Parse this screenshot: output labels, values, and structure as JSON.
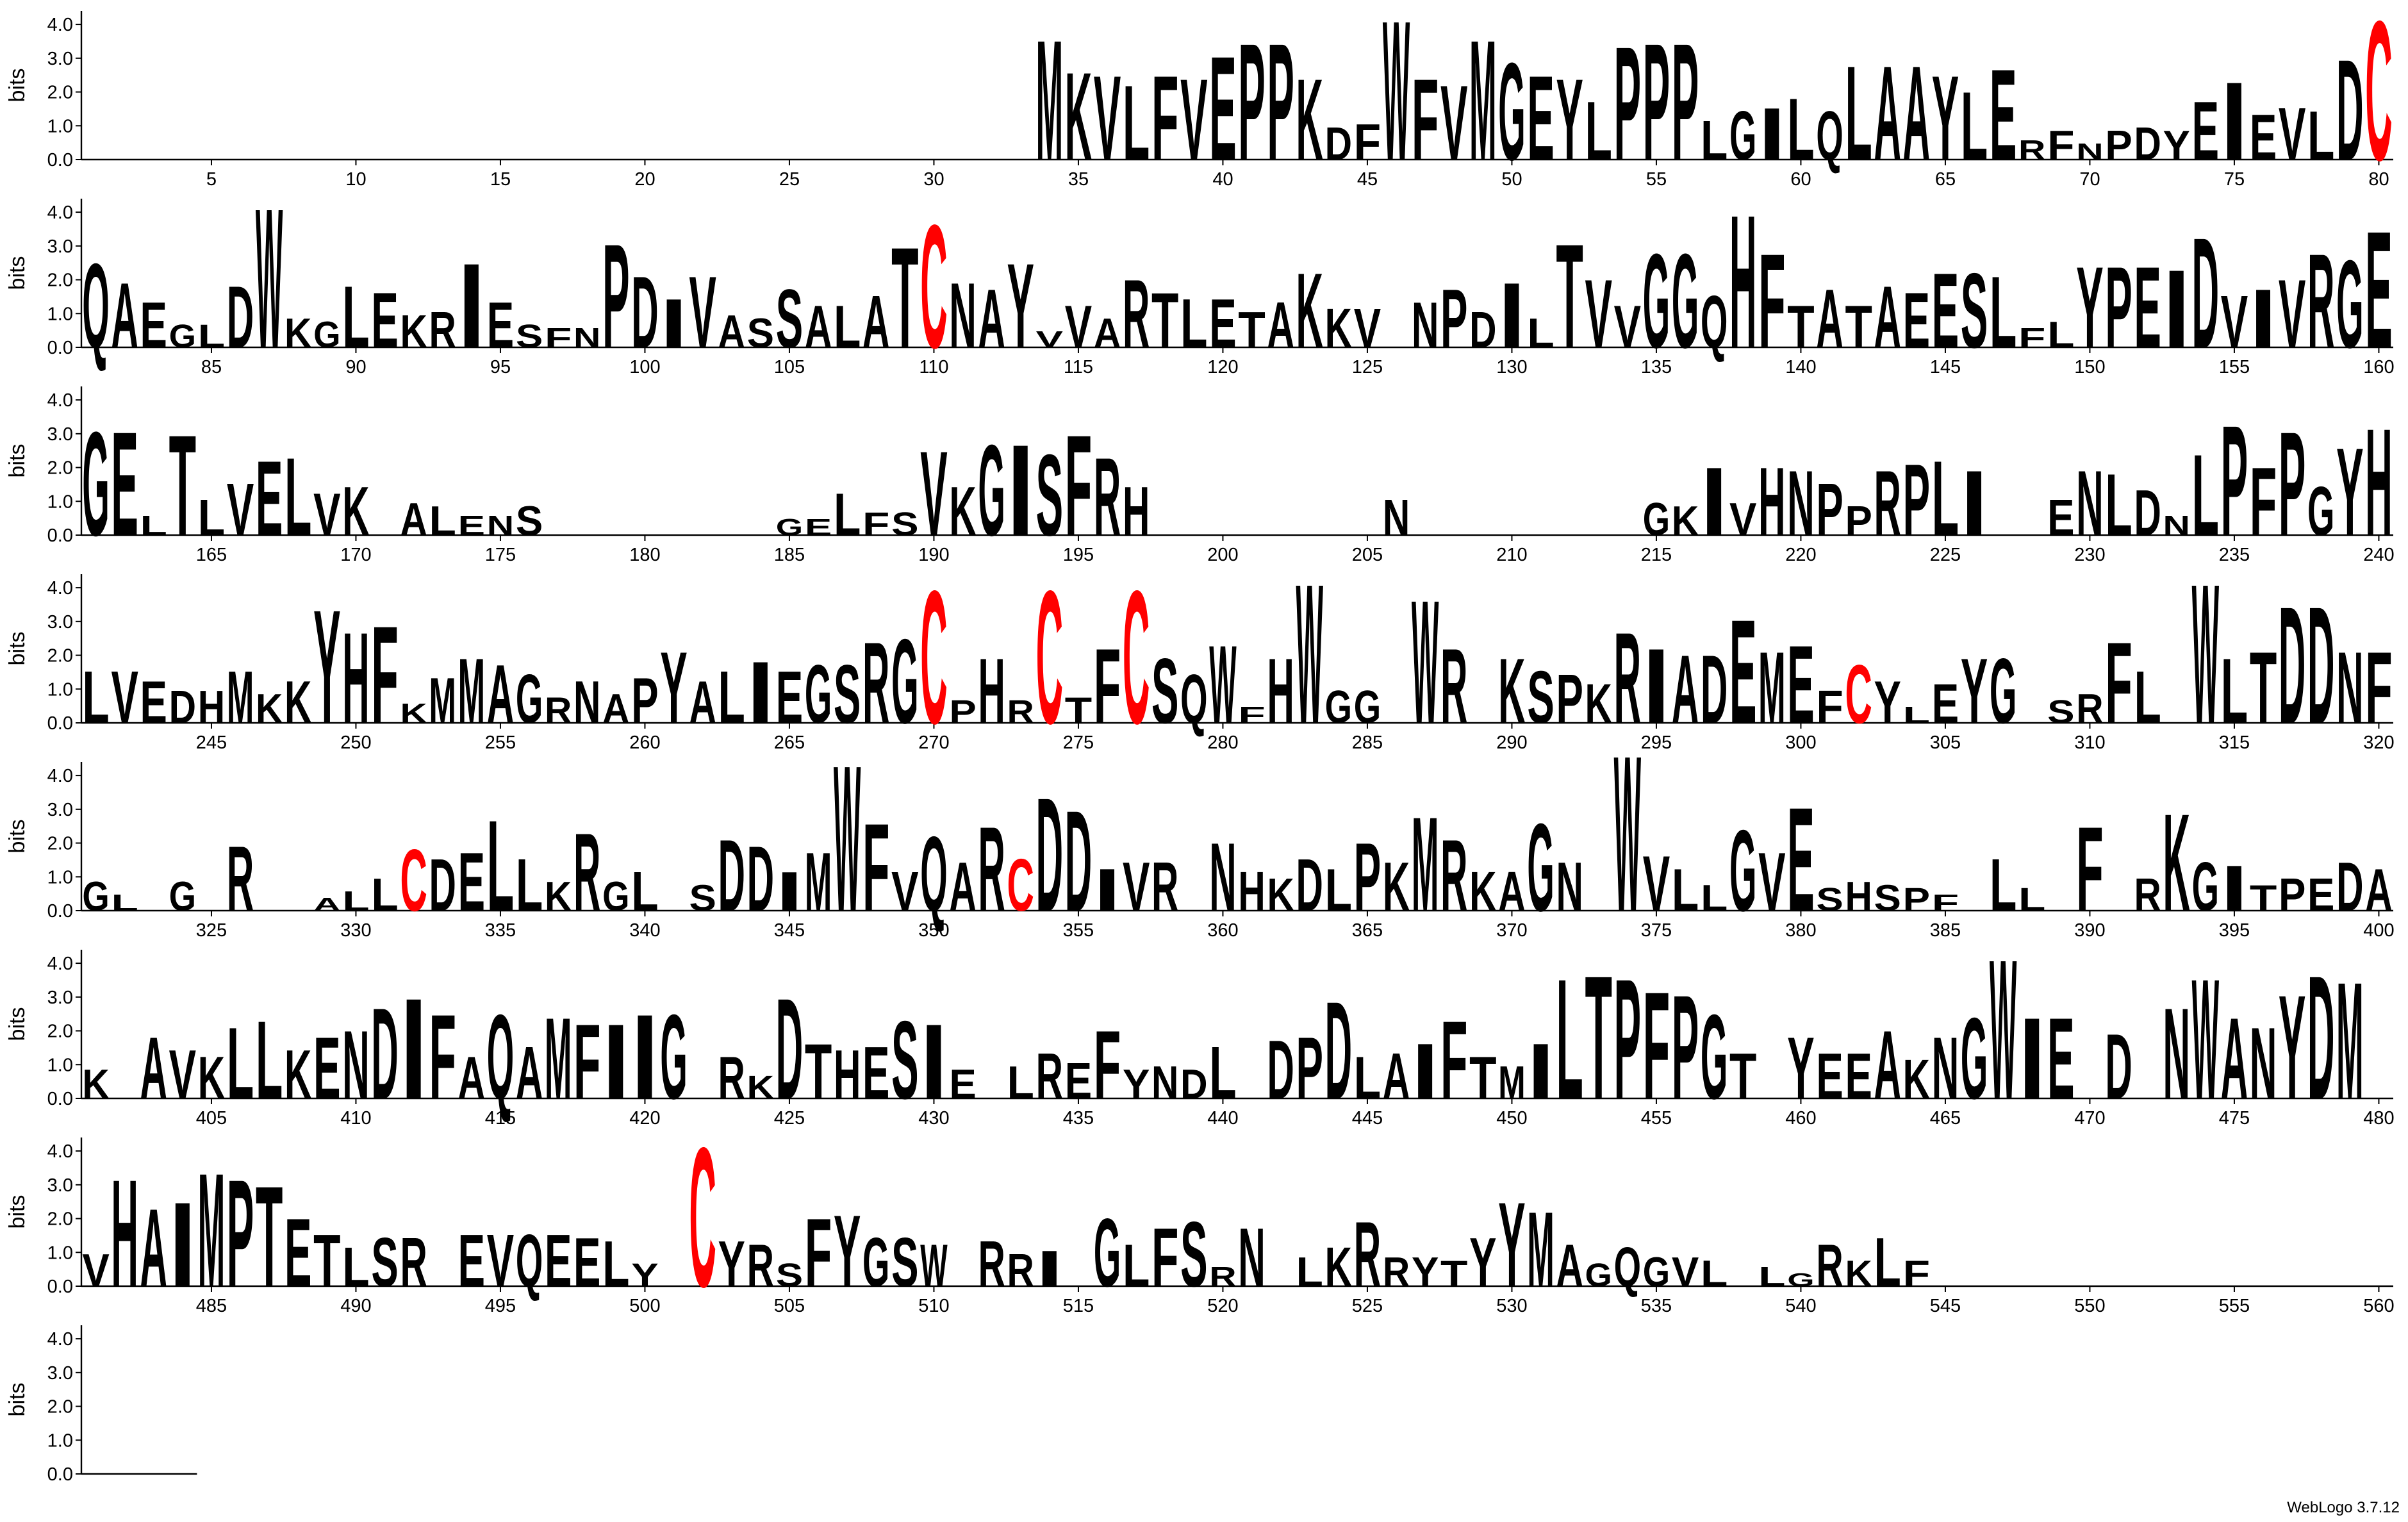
{
  "chart_data": {
    "type": "logo",
    "ylabel": "bits",
    "footer": "WebLogo 3.7.12",
    "ylim": [
      0,
      4.4
    ],
    "yticks": [
      {
        "value": 0,
        "label": "0.0"
      },
      {
        "value": 1,
        "label": "1.0"
      },
      {
        "value": 2,
        "label": "2.0"
      },
      {
        "value": 3,
        "label": "3.0"
      },
      {
        "value": 4,
        "label": "4.0"
      }
    ],
    "xlim": [
      1,
      564
    ],
    "xticks": [
      5,
      10,
      15,
      20,
      25,
      30,
      35,
      40,
      45,
      50,
      55,
      60,
      65,
      70,
      75,
      80,
      85,
      90,
      95,
      100,
      105,
      110,
      115,
      120,
      125,
      130,
      135,
      140,
      145,
      150,
      155,
      160,
      165,
      170,
      175,
      180,
      185,
      190,
      195,
      200,
      205,
      210,
      215,
      220,
      225,
      230,
      235,
      240,
      245,
      250,
      255,
      260,
      265,
      270,
      275,
      280,
      285,
      290,
      295,
      300,
      305,
      310,
      315,
      320,
      325,
      330,
      335,
      340,
      345,
      350,
      355,
      360,
      365,
      370,
      375,
      380,
      385,
      390,
      395,
      400,
      405,
      410,
      415,
      420,
      425,
      430,
      435,
      440,
      445,
      450,
      455,
      460,
      465,
      470,
      475,
      480,
      485,
      490,
      495,
      500,
      505,
      510,
      515,
      520,
      525,
      530,
      535,
      540,
      545,
      550,
      555,
      560
    ],
    "color": "#000000",
    "letter_colors": {
      "C": "#ff0000"
    },
    "letters": [
      null,
      null,
      null,
      null,
      null,
      null,
      null,
      null,
      null,
      null,
      null,
      null,
      null,
      null,
      null,
      null,
      null,
      null,
      null,
      null,
      null,
      null,
      null,
      null,
      null,
      null,
      null,
      null,
      null,
      null,
      null,
      null,
      null,
      "M",
      "K",
      "V",
      "L",
      "F",
      "V",
      "E",
      "P",
      "P",
      "K",
      "D",
      "F",
      "W",
      "F",
      "V",
      "M",
      "G",
      "E",
      "Y",
      "L",
      "P",
      "P",
      "P",
      "L",
      "G",
      "I",
      "L",
      "Q",
      "L",
      "A",
      "A",
      "Y",
      "L",
      "E",
      "R",
      "F",
      "N",
      "P",
      "D",
      "Y",
      "E",
      "I",
      "E",
      "V",
      "L",
      "D",
      "C",
      "Q",
      "A",
      "E",
      "G",
      "L",
      "D",
      "W",
      "K",
      "G",
      "L",
      "E",
      "K",
      "R",
      "I",
      "E",
      "S",
      "F",
      "N",
      "P",
      "D",
      "I",
      "V",
      "A",
      "S",
      "S",
      "A",
      "L",
      "A",
      "T",
      "C",
      "N",
      "A",
      "Y",
      "V",
      "V",
      "A",
      "R",
      "T",
      "L",
      "E",
      "T",
      "A",
      "K",
      "K",
      "V",
      null,
      "N",
      "P",
      "D",
      "I",
      "L",
      "T",
      "V",
      "V",
      "G",
      "G",
      "Q",
      "H",
      "F",
      "T",
      "A",
      "T",
      "A",
      "E",
      "E",
      "S",
      "L",
      "F",
      "L",
      "Y",
      "P",
      "E",
      "I",
      "D",
      "V",
      "I",
      "V",
      "R",
      "G",
      "E",
      "G",
      "E",
      "L",
      "T",
      "L",
      "V",
      "E",
      "L",
      "V",
      "K",
      null,
      "A",
      "L",
      "E",
      "N",
      "S",
      null,
      null,
      null,
      null,
      null,
      null,
      null,
      null,
      "G",
      "E",
      "L",
      "F",
      "S",
      "V",
      "K",
      "G",
      "I",
      "S",
      "F",
      "R",
      "H",
      null,
      null,
      null,
      null,
      null,
      null,
      null,
      null,
      "N",
      null,
      null,
      null,
      null,
      null,
      null,
      null,
      null,
      "G",
      "K",
      "I",
      "V",
      "H",
      "N",
      "P",
      "P",
      "R",
      "P",
      "L",
      "I",
      null,
      null,
      "E",
      "N",
      "L",
      "D",
      "N",
      "L",
      "P",
      "F",
      "P",
      "G",
      "Y",
      "H",
      "L",
      "V",
      "E",
      "D",
      "H",
      "M",
      "K",
      "K",
      "Y",
      "H",
      "F",
      "K",
      "M",
      "M",
      "A",
      "G",
      "R",
      "N",
      "A",
      "P",
      "Y",
      "A",
      "L",
      "I",
      "E",
      "G",
      "S",
      "R",
      "G",
      "C",
      "P",
      "H",
      "R",
      "C",
      "T",
      "F",
      "C",
      "S",
      "Q",
      "W",
      "F",
      "H",
      "W",
      "G",
      "G",
      null,
      "W",
      "R",
      null,
      "K",
      "S",
      "P",
      "K",
      "R",
      "I",
      "A",
      "D",
      "E",
      "M",
      "E",
      "F",
      "C",
      "Y",
      "L",
      "E",
      "Y",
      "G",
      null,
      "S",
      "R",
      "F",
      "L",
      null,
      "W",
      "L",
      "T",
      "D",
      "D",
      "N",
      "F",
      "G",
      "L",
      null,
      "G",
      null,
      "R",
      null,
      null,
      "A",
      "L",
      "L",
      "C",
      "D",
      "E",
      "L",
      "L",
      "K",
      "R",
      "G",
      "L",
      null,
      "S",
      "D",
      "D",
      "I",
      "M",
      "W",
      "F",
      "V",
      "Q",
      "A",
      "R",
      "C",
      "D",
      "D",
      "I",
      "V",
      "R",
      null,
      "N",
      "H",
      "K",
      "D",
      "L",
      "P",
      "K",
      "M",
      "R",
      "K",
      "A",
      "G",
      "N",
      null,
      "W",
      "V",
      "L",
      "L",
      "G",
      "V",
      "E",
      "S",
      "H",
      "S",
      "P",
      "F",
      null,
      "L",
      "L",
      null,
      "F",
      null,
      "R",
      "K",
      "G",
      "I",
      "T",
      "P",
      "E",
      "D",
      "A",
      "K",
      null,
      "A",
      "V",
      "K",
      "L",
      "L",
      "K",
      "E",
      "N",
      "D",
      "I",
      "F",
      "A",
      "Q",
      "A",
      "M",
      "F",
      "I",
      "I",
      "G",
      null,
      "R",
      "K",
      "D",
      "T",
      "H",
      "E",
      "S",
      "I",
      "E",
      null,
      "L",
      "R",
      "E",
      "F",
      "Y",
      "N",
      "D",
      "L",
      null,
      "D",
      "P",
      "D",
      "L",
      "A",
      "I",
      "F",
      "T",
      "M",
      "I",
      "L",
      "T",
      "P",
      "F",
      "P",
      "G",
      "T",
      null,
      "Y",
      "E",
      "E",
      "A",
      "K",
      "N",
      "G",
      "W",
      "I",
      "E",
      null,
      "D",
      null,
      "N",
      "W",
      "A",
      "N",
      "Y",
      "D",
      "M",
      null,
      "V",
      "H",
      "A",
      "I",
      "M",
      "P",
      "T",
      "E",
      "T",
      "L",
      "S",
      "R",
      null,
      "E",
      "V",
      "Q",
      "E",
      "E",
      "L",
      "Y",
      null,
      "C",
      "Y",
      "R",
      "S",
      "F",
      "Y",
      "G",
      "S",
      "W",
      null,
      "R",
      "R",
      "I",
      null,
      "G",
      "L",
      "F",
      "S",
      "R",
      "N",
      null,
      "L",
      "K",
      "R",
      "R",
      "Y",
      "T",
      "Y",
      "Y",
      "M",
      "A",
      "G",
      "Q",
      "G",
      "V",
      "L",
      null,
      "L",
      "G",
      "R",
      "K",
      "L",
      "F",
      null,
      null,
      null,
      null,
      null,
      null,
      null,
      null,
      null,
      null,
      null,
      null,
      null,
      null,
      null,
      null,
      null,
      null,
      null,
      null
    ],
    "values": [
      0,
      0,
      0,
      0,
      0,
      0,
      0,
      0,
      0,
      0,
      0,
      0,
      0,
      0,
      0,
      0,
      0,
      0,
      0,
      0,
      0,
      0,
      0,
      0,
      0,
      0,
      0,
      0,
      0,
      0,
      0,
      0,
      0,
      3.7,
      2.7,
      2.6,
      2.3,
      2.6,
      2.5,
      3.2,
      3.6,
      3.6,
      2.5,
      1.0,
      1.1,
      4.3,
      2.5,
      2.3,
      3.7,
      3.0,
      2.6,
      2.5,
      1.8,
      3.5,
      3.6,
      3.6,
      1.2,
      1.5,
      1.6,
      1.9,
      1.5,
      2.9,
      2.9,
      2.9,
      2.6,
      2.1,
      2.8,
      0.6,
      0.9,
      0.5,
      0.9,
      1.0,
      0.9,
      1.8,
      2.4,
      1.4,
      1.6,
      1.5,
      3.1,
      4.3,
      2.6,
      2.0,
      1.4,
      0.7,
      0.7,
      1.9,
      4.3,
      0.9,
      0.8,
      1.9,
      1.7,
      1.0,
      1.1,
      2.6,
      1.4,
      0.7,
      0.6,
      0.6,
      3.2,
      2.2,
      1.5,
      2.2,
      1.0,
      0.9,
      1.8,
      1.3,
      1.3,
      1.6,
      3.1,
      3.8,
      2.0,
      1.8,
      2.6,
      0.5,
      1.3,
      0.9,
      2.1,
      1.7,
      1.5,
      1.5,
      1.1,
      1.4,
      2.3,
      1.2,
      1.2,
      0,
      1.4,
      1.8,
      1.1,
      2.0,
      0.9,
      3.2,
      2.1,
      1.3,
      2.9,
      2.9,
      1.6,
      4.1,
      2.9,
      1.3,
      1.8,
      1.3,
      1.9,
      1.7,
      2.3,
      2.3,
      2.2,
      0.6,
      0.8,
      2.5,
      2.5,
      2.5,
      2.4,
      3.4,
      1.6,
      1.8,
      2.1,
      2.9,
      2.7,
      3.6,
      3.2,
      3.2,
      0.6,
      3.1,
      1.1,
      1.6,
      2.3,
      2.4,
      1.3,
      1.5,
      0,
      1.0,
      0.9,
      0.6,
      0.6,
      0.9,
      0,
      0,
      0,
      0,
      0,
      0,
      0,
      0,
      0.5,
      0.5,
      1.3,
      0.7,
      0.7,
      2.6,
      1.5,
      2.8,
      2.8,
      2.5,
      3.1,
      2.4,
      1.5,
      0,
      0,
      0,
      0,
      0,
      0,
      0,
      0,
      1.1,
      0,
      0,
      0,
      0,
      0,
      0,
      0,
      0,
      1.0,
      0.9,
      2.1,
      1.0,
      2.1,
      2.0,
      1.6,
      0.9,
      2.0,
      2.2,
      2.3,
      2.0,
      0,
      0,
      1.1,
      2.0,
      1.9,
      1.4,
      0.6,
      2.5,
      3.4,
      2.1,
      3.2,
      1.5,
      2.7,
      3.3,
      1.6,
      1.6,
      1.3,
      1.0,
      1.0,
      1.6,
      0.9,
      1.3,
      3.5,
      2.8,
      3.0,
      0.6,
      1.4,
      2.0,
      1.8,
      1.5,
      0.8,
      1.3,
      0.9,
      1.4,
      2.2,
      1.3,
      1.6,
      1.9,
      1.6,
      1.8,
      1.8,
      2.5,
      2.6,
      4.1,
      0.7,
      2.0,
      0.7,
      4.1,
      0.8,
      2.3,
      4.1,
      2.0,
      1.5,
      2.4,
      0.5,
      2.0,
      4.3,
      1.0,
      1.0,
      0,
      3.8,
      2.3,
      0,
      2.0,
      1.6,
      1.5,
      1.2,
      2.8,
      2.3,
      2.1,
      2.1,
      3.2,
      2.2,
      2.4,
      1.0,
      1.8,
      1.3,
      0.5,
      1.2,
      2.0,
      2.0,
      0,
      0.7,
      0.9,
      2.5,
      1.6,
      0,
      4.3,
      2.0,
      2.2,
      3.6,
      3.6,
      2.2,
      2.2,
      0.9,
      0.5,
      0,
      0.9,
      0,
      2.0,
      0,
      0,
      0.4,
      0.6,
      1.0,
      1.9,
      1.6,
      1.8,
      2.8,
      1.6,
      0.9,
      2.4,
      0.9,
      1.2,
      0,
      0.8,
      2.2,
      2.0,
      1.2,
      1.8,
      4.5,
      2.7,
      1.2,
      2.3,
      1.5,
      2.6,
      1.6,
      3.5,
      3.1,
      1.3,
      1.5,
      1.5,
      0,
      2.1,
      1.2,
      1.0,
      1.6,
      1.3,
      2.1,
      1.5,
      2.9,
      2.2,
      1.2,
      1.2,
      2.7,
      1.5,
      0,
      4.8,
      1.7,
      1.3,
      0.8,
      2.5,
      1.8,
      3.2,
      0.7,
      0.9,
      0.8,
      0.7,
      0.5,
      0,
      1.6,
      0.7,
      0,
      2.6,
      0,
      1.0,
      3.0,
      1.5,
      1.4,
      0.8,
      1.0,
      1.0,
      1.5,
      1.3,
      0.9,
      0,
      1.9,
      1.5,
      1.3,
      2.2,
      2.4,
      1.5,
      1.9,
      2.1,
      2.8,
      3.1,
      2.6,
      1.3,
      2.6,
      1.6,
      2.5,
      2.3,
      2.3,
      2.6,
      2.6,
      0,
      1.3,
      0.7,
      3.1,
      1.7,
      1.5,
      1.6,
      2.4,
      2.3,
      0.9,
      0,
      1.0,
      1.4,
      1.1,
      2.1,
      0.9,
      1.0,
      0.9,
      1.6,
      0,
      1.8,
      1.9,
      3.0,
      1.3,
      1.4,
      1.7,
      2.4,
      1.3,
      1.0,
      1.7,
      3.7,
      3.8,
      3.7,
      3.3,
      3.2,
      2.6,
      1.4,
      0,
      1.9,
      1.4,
      1.4,
      2.1,
      1.2,
      1.9,
      2.5,
      4.3,
      2.5,
      2.5,
      0,
      2.0,
      0,
      2.8,
      3.7,
      2.5,
      2.2,
      3.2,
      3.8,
      3.6,
      0,
      1.0,
      3.3,
      2.4,
      2.6,
      3.5,
      3.3,
      3.1,
      2.1,
      1.6,
      1.2,
      1.5,
      1.5,
      0,
      1.6,
      1.6,
      1.6,
      1.6,
      1.5,
      1.4,
      0.7,
      0,
      4.3,
      1.4,
      1.3,
      0.7,
      2.1,
      2.2,
      1.5,
      1.5,
      1.3,
      0,
      1.4,
      1.0,
      1.1,
      0,
      2.1,
      1.3,
      1.8,
      2.0,
      0.6,
      1.8,
      0,
      0.9,
      1.2,
      2.0,
      0.9,
      0.9,
      0.8,
      1.5,
      2.6,
      2.3,
      1.3,
      0.7,
      1.2,
      0.9,
      0.9,
      0.8,
      0,
      0.6,
      0.4,
      1.3,
      0.8,
      1.5,
      0.8,
      0,
      0,
      0,
      0,
      0,
      0,
      0,
      0,
      0,
      0,
      0,
      0,
      0,
      0,
      0,
      0,
      0,
      0,
      0,
      0
    ]
  }
}
